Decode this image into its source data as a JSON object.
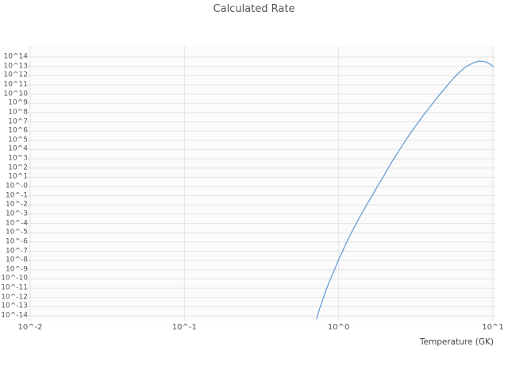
{
  "colors": {
    "line": "#6c9dd4",
    "grid": "#e3e3e3",
    "plot_bg": "#fbfbfb",
    "title_text": "#555555",
    "tick_text": "#555555"
  },
  "chart_data": {
    "type": "line",
    "title": "Calculated Rate",
    "xlabel": "Temperature (GK)",
    "ylabel": "",
    "x_scale": "log",
    "y_scale": "log",
    "xlim": [
      0.01,
      10
    ],
    "ylim_log10": [
      -14,
      14
    ],
    "grid": true,
    "legend": "none",
    "x_ticks": [
      {
        "value": 0.01,
        "label": "10^-2"
      },
      {
        "value": 0.1,
        "label": "10^-1"
      },
      {
        "value": 1,
        "label": "10^0"
      },
      {
        "value": 10,
        "label": "10^1"
      }
    ],
    "y_ticks": [
      "10^14",
      "10^13",
      "10^12",
      "10^11",
      "10^10",
      "10^9",
      "10^8",
      "10^7",
      "10^6",
      "10^5",
      "10^4",
      "10^3",
      "10^2",
      "10^1",
      "10^-0",
      "10^-1",
      "10^-2",
      "10^-3",
      "10^-4",
      "10^-5",
      "10^-6",
      "10^-7",
      "10^-8",
      "10^-9",
      "10^-10",
      "10^-11",
      "10^-12",
      "10^-13",
      "10^-14"
    ],
    "series": [
      {
        "name": "calculated-rate",
        "x": [
          0.72,
          0.74,
          0.76,
          0.79,
          0.82,
          0.86,
          0.9,
          0.95,
          1.0,
          1.06,
          1.12,
          1.2,
          1.28,
          1.37,
          1.47,
          1.58,
          1.7,
          1.84,
          2.0,
          2.2,
          2.4,
          2.6,
          2.9,
          3.2,
          3.5,
          3.9,
          4.3,
          4.7,
          5.1,
          5.6,
          6.1,
          6.6,
          7.1,
          7.6,
          8.1,
          8.6,
          9.1,
          9.5,
          10.0
        ],
        "log10_y": [
          -14.3,
          -13.6,
          -13.0,
          -12.2,
          -11.4,
          -10.5,
          -9.7,
          -8.8,
          -7.9,
          -7.0,
          -6.1,
          -5.1,
          -4.2,
          -3.3,
          -2.4,
          -1.5,
          -0.6,
          0.4,
          1.4,
          2.6,
          3.6,
          4.5,
          5.7,
          6.7,
          7.6,
          8.6,
          9.5,
          10.3,
          11.0,
          11.8,
          12.4,
          12.9,
          13.2,
          13.45,
          13.55,
          13.55,
          13.45,
          13.3,
          13.0
        ]
      }
    ]
  }
}
